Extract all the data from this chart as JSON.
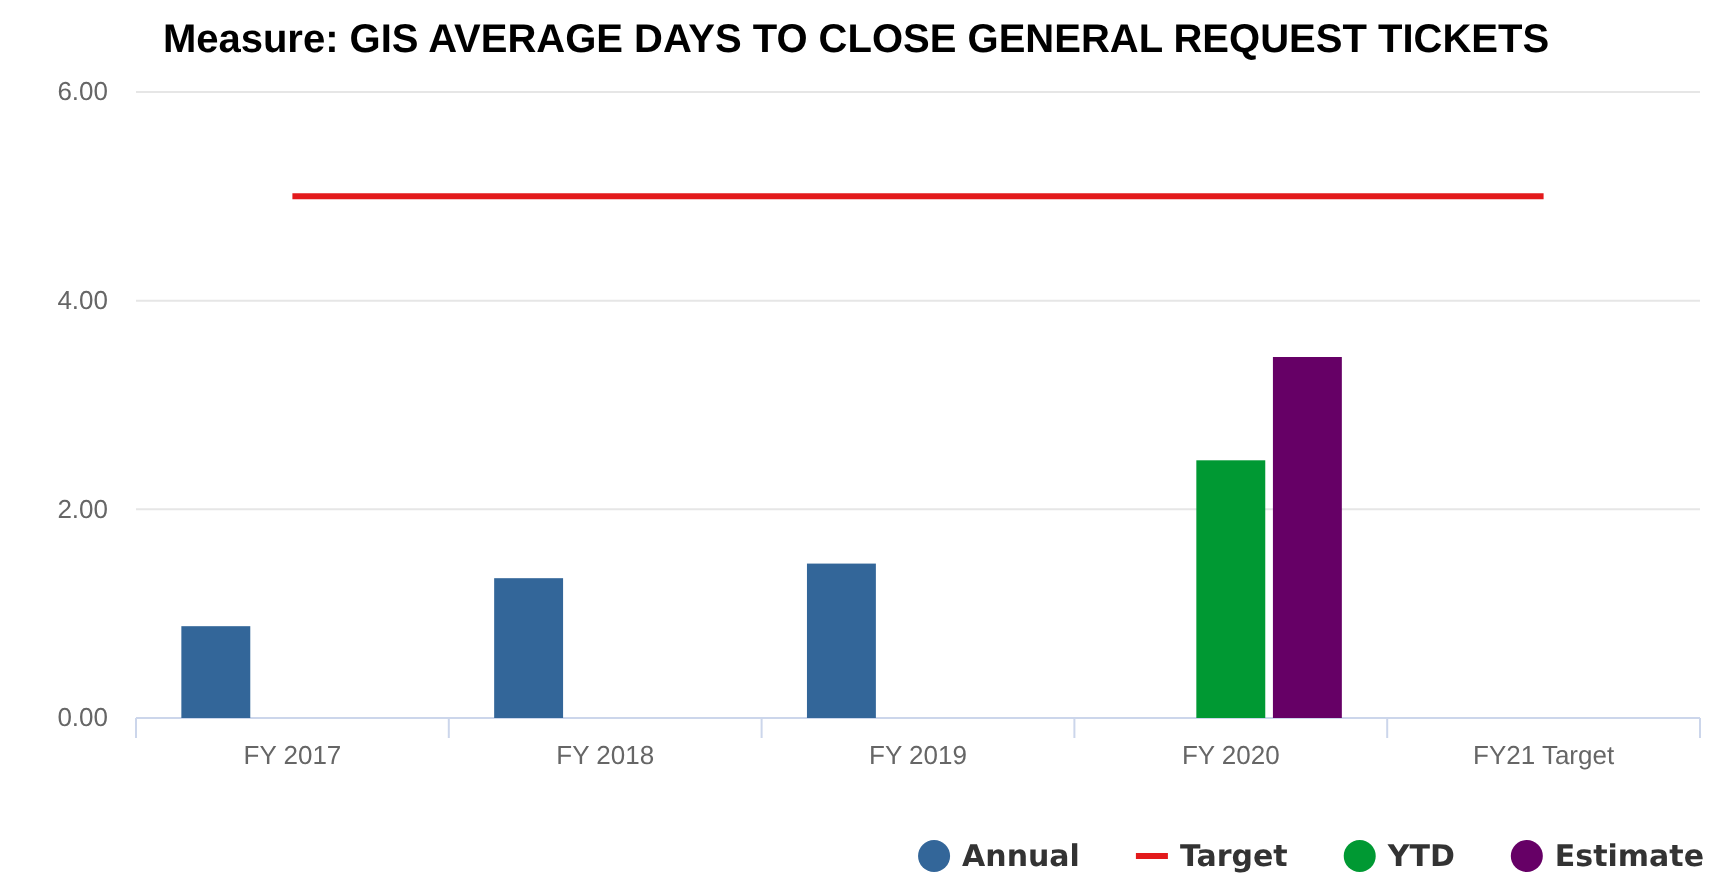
{
  "chart_data": {
    "type": "bar",
    "title": "Measure: GIS AVERAGE DAYS TO CLOSE GENERAL REQUEST TICKETS",
    "categories": [
      "FY 2017",
      "FY 2018",
      "FY 2019",
      "FY 2020",
      "FY21 Target"
    ],
    "series": [
      {
        "name": "Annual",
        "color": "#336699",
        "values": [
          0.88,
          1.34,
          1.48,
          null,
          null
        ]
      },
      {
        "name": "Target",
        "type": "line",
        "color": "#e31a1c",
        "values": [
          5,
          5,
          5,
          5,
          5
        ]
      },
      {
        "name": "YTD",
        "color": "#009933",
        "values": [
          null,
          null,
          null,
          2.47,
          null
        ]
      },
      {
        "name": "Estimate",
        "color": "#660066",
        "values": [
          null,
          null,
          null,
          3.46,
          null
        ]
      }
    ],
    "ylim": [
      0,
      6
    ],
    "yticks": [
      {
        "value": 0,
        "label": "0.00"
      },
      {
        "value": 2,
        "label": "2.00"
      },
      {
        "value": 4,
        "label": "4.00"
      },
      {
        "value": 6,
        "label": "6.00"
      }
    ],
    "grid": "y",
    "legend": "bottom right",
    "marker": "none"
  }
}
